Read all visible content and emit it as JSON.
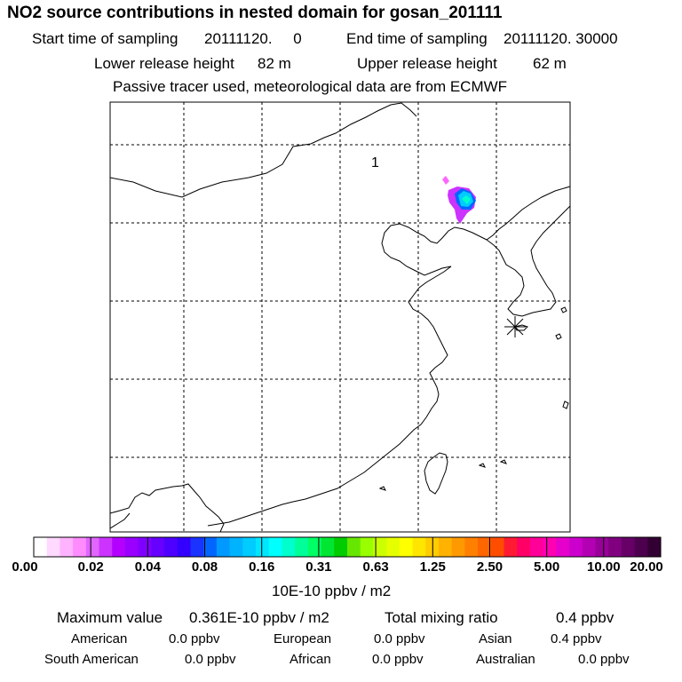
{
  "header": {
    "title": "NO2 source contributions in nested domain for gosan_201111",
    "start_label": "Start time of sampling",
    "start_value": "20111120.     0",
    "end_label": "End time of sampling",
    "end_value": "20111120. 30000",
    "lower_label": "Lower release height",
    "lower_value": "82 m",
    "upper_label": "Upper release height",
    "upper_value": "62 m",
    "info": "Passive tracer used, meteorological data are from ECMWF"
  },
  "map": {
    "region_label": "1",
    "receptor_marker": "asterisk-icon",
    "plume_colors": [
      "#ff66ff",
      "#cc33ff",
      "#0066ff",
      "#00ccff",
      "#00ffcc"
    ]
  },
  "colorbar": {
    "colors": [
      "#ffffff",
      "#ffd9ff",
      "#ffb3ff",
      "#ff8cff",
      "#e066ff",
      "#cc33ff",
      "#b300ff",
      "#9900ff",
      "#8000ff",
      "#6600ff",
      "#4d00ff",
      "#3300ff",
      "#1a33ff",
      "#0066ff",
      "#0099ff",
      "#00b3ff",
      "#00ccff",
      "#00e6ff",
      "#00ffff",
      "#00ffcc",
      "#00ff99",
      "#00ff66",
      "#00e633",
      "#00cc00",
      "#66e600",
      "#99ff00",
      "#ccff00",
      "#e6ff00",
      "#ffff00",
      "#ffe600",
      "#ffcc00",
      "#ffb300",
      "#ff9900",
      "#ff8000",
      "#ff6600",
      "#ff4d00",
      "#ff1a33",
      "#ff0066",
      "#ff0099",
      "#ff00b3",
      "#e600cc",
      "#cc00cc",
      "#b300b3",
      "#990099",
      "#800080",
      "#660066",
      "#4d004d",
      "#330033"
    ],
    "labels": [
      "0.00",
      "0.02",
      "0.04",
      "0.08",
      "0.16",
      "0.31",
      "0.63",
      "1.25",
      "2.50",
      "5.00",
      "10.00",
      "20.00"
    ],
    "unit": "10E-10 ppbv / m2"
  },
  "stats": {
    "max_label": "Maximum value",
    "max_value": "0.361E-10 ppbv / m2",
    "total_label": "Total mixing ratio",
    "total_value": "0.4 ppbv",
    "american_label": "American",
    "american_value": "0.0 ppbv",
    "european_label": "European",
    "european_value": "0.0 ppbv",
    "asian_label": "Asian",
    "asian_value": "0.4 ppbv",
    "south_american_label": "South American",
    "south_american_value": "0.0 ppbv",
    "african_label": "African",
    "african_value": "0.0 ppbv",
    "australian_label": "Australian",
    "australian_value": "0.0 ppbv"
  }
}
